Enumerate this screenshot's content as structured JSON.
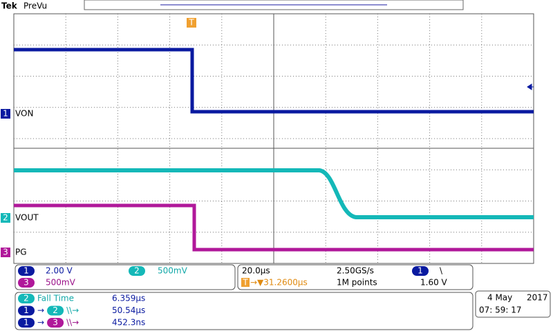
{
  "header": {
    "brand": "Tek",
    "mode": "PreVu"
  },
  "trigger_marker": "T",
  "channels": [
    {
      "number": "1",
      "label": "VON"
    },
    {
      "number": "2",
      "label": "VOUT"
    },
    {
      "number": "3",
      "label": "PG"
    }
  ],
  "settings": {
    "ch1_scale": {
      "channel": "1",
      "value": "2.00 V"
    },
    "ch2_scale": {
      "channel": "2",
      "value": "500mV"
    },
    "ch3_scale": {
      "channel": "3",
      "value": "500mV"
    },
    "horizontal_scale": "20.0µs",
    "sample_rate": "2.50GS/s",
    "trigger_channel": "1",
    "trigger_slope": "\\",
    "trigger_badge": "T",
    "trigger_position": "→▼31.2600µs",
    "record_length": "1M points",
    "trigger_level": "1.60 V"
  },
  "measurements": [
    {
      "parts": [
        "2",
        "Fall Time"
      ],
      "value": "6.359µs"
    },
    {
      "parts": [
        "1",
        "→",
        "2",
        "\\\\→"
      ],
      "value": "50.54µs"
    },
    {
      "parts": [
        "1",
        "→",
        "3",
        "\\\\→"
      ],
      "value": "452.3ns"
    }
  ],
  "datetime": {
    "date": "4 May",
    "year": "2017",
    "time": "07: 59: 17"
  }
}
